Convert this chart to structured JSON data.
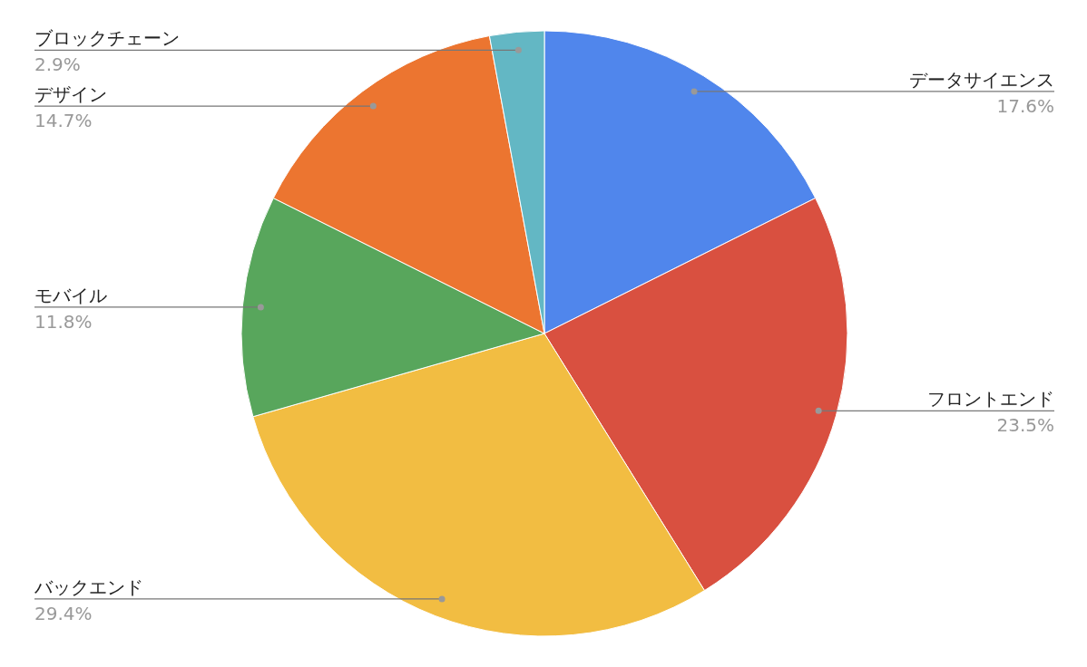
{
  "chart_data": {
    "type": "pie",
    "categories": [
      "データサイエンス",
      "フロントエンド",
      "バックエンド",
      "モバイル",
      "デザイン",
      "ブロックチェーン"
    ],
    "values": [
      17.6,
      23.5,
      29.4,
      11.8,
      14.7,
      2.9
    ],
    "value_labels": [
      "17.6%",
      "23.5%",
      "29.4%",
      "11.8%",
      "14.7%",
      "2.9%"
    ],
    "colors": [
      "#5086ec",
      "#d95040",
      "#f2bd42",
      "#58a65c",
      "#ec7530",
      "#63b7c4"
    ]
  }
}
